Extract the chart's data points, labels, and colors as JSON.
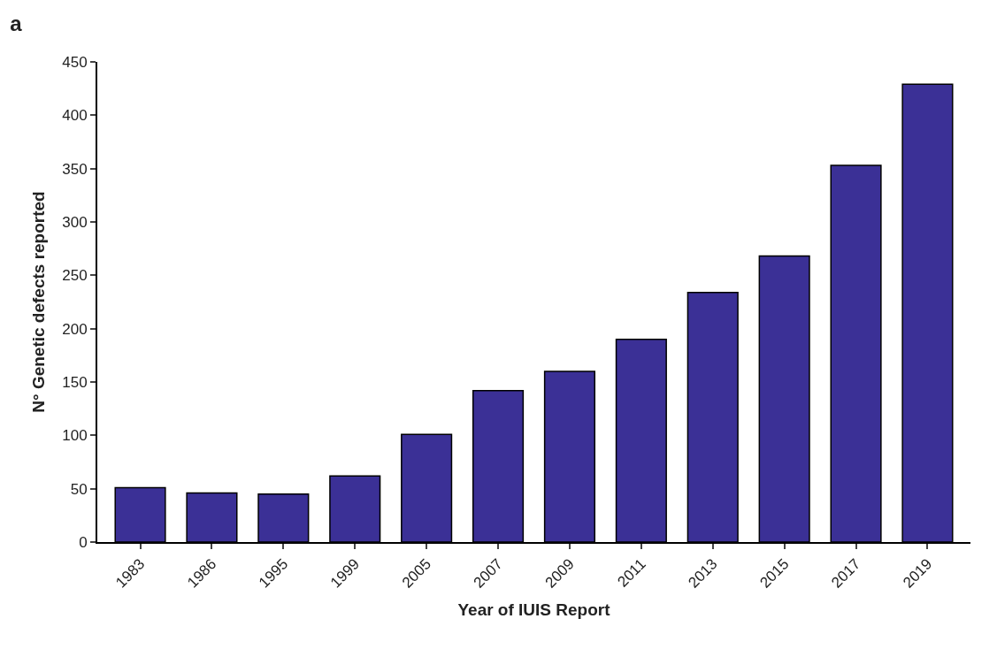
{
  "chart_data": {
    "type": "bar",
    "title": "a",
    "xlabel": "Year of IUIS Report",
    "ylabel": "N° Genetic defects reported",
    "categories": [
      "1983",
      "1986",
      "1995",
      "1999",
      "2005",
      "2007",
      "2009",
      "2011",
      "2013",
      "2015",
      "2017",
      "2019"
    ],
    "values": [
      51,
      46,
      45,
      62,
      101,
      142,
      160,
      190,
      234,
      268,
      353,
      429
    ],
    "color": "#3b3096",
    "ylim": [
      0,
      450
    ],
    "yticks": [
      0,
      50,
      100,
      150,
      200,
      250,
      300,
      350,
      400,
      450
    ]
  }
}
